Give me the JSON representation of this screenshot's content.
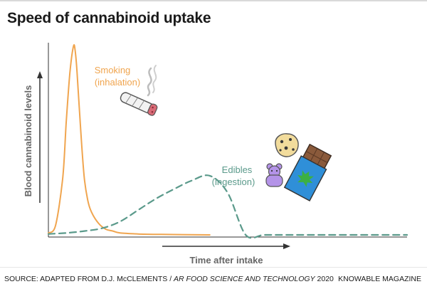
{
  "title": "Speed of cannabinoid uptake",
  "source": {
    "prefix": "SOURCE: ADAPTED FROM D.J. McCLEMENTS / ",
    "journal": "AR FOOD SCIENCE AND TECHNOLOGY",
    "suffix": " 2020"
  },
  "brand": "KNOWABLE MAGAZINE",
  "colors": {
    "smoking": "#f0a54f",
    "edibles": "#5b9a8b",
    "axis": "#333333",
    "title": "#1a1a1a"
  },
  "icons": {
    "smoking": "joint-icon",
    "cookie": "cookie-icon",
    "gummy": "gummy-bear-icon",
    "chocolate": "chocolate-bar-icon"
  },
  "chart_data": {
    "type": "line",
    "xlabel": "Time after intake",
    "ylabel": "Blood cannabinoid levels",
    "xlim": [
      0,
      100
    ],
    "ylim": [
      0,
      100
    ],
    "grid": false,
    "axis_ticks": false,
    "series": [
      {
        "name": "Smoking (inhalation)",
        "label_lines": [
          "Smoking",
          "(inhalation)"
        ],
        "style": "solid",
        "color": "#f0a54f",
        "x": [
          0,
          2,
          4,
          5,
          6,
          7,
          7.5,
          8,
          9,
          10,
          11,
          12,
          14,
          16,
          18,
          20,
          25,
          30,
          35,
          45
        ],
        "y": [
          1,
          5,
          30,
          60,
          85,
          99,
          96,
          85,
          55,
          30,
          18,
          12,
          6,
          3,
          2,
          1,
          0.5,
          0.3,
          0.2,
          0
        ]
      },
      {
        "name": "Edibles (ingestion)",
        "label_lines": [
          "Edibles",
          "(ingestion)"
        ],
        "style": "dashed",
        "color": "#5b9a8b",
        "x": [
          0,
          5,
          10,
          15,
          20,
          25,
          30,
          35,
          40,
          45,
          50,
          55,
          60,
          65,
          70,
          75,
          80,
          85,
          90,
          95,
          100
        ],
        "y": [
          0.5,
          1,
          2,
          3.5,
          7,
          13,
          19,
          24,
          28.5,
          31,
          22,
          0,
          0,
          0,
          0,
          0,
          0,
          0,
          0,
          0,
          0
        ]
      }
    ]
  }
}
